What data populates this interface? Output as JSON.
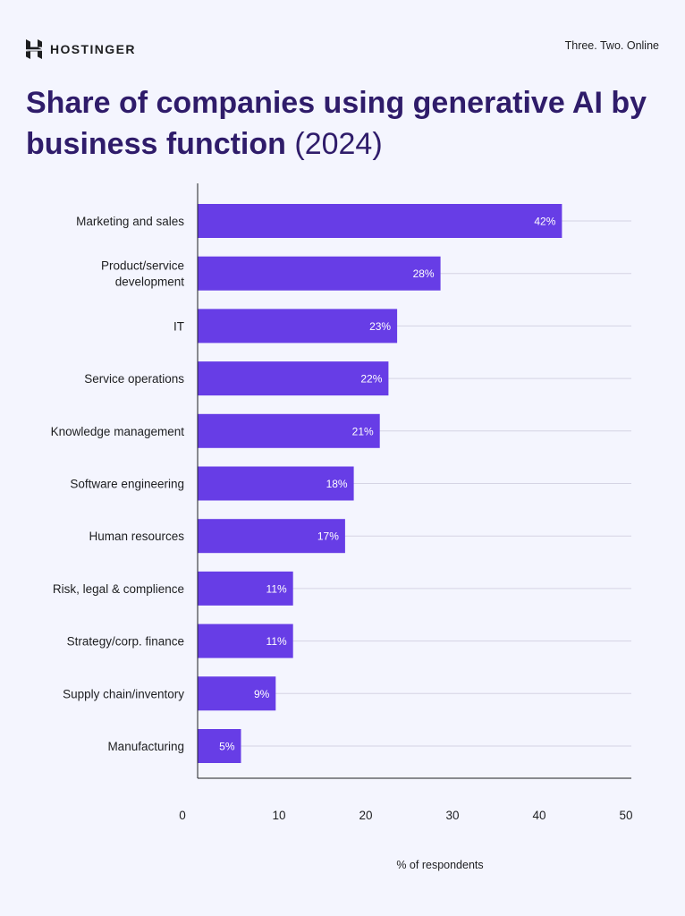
{
  "header": {
    "brand": "HOSTINGER",
    "tagline": "Three. Two. Online",
    "title_main": "Share of companies using generative AI by business function",
    "title_year": "(2024)"
  },
  "colors": {
    "bar": "#673de6",
    "title": "#2f1c6a",
    "background": "#f4f5fe",
    "gridline": "#d5d4e4",
    "axis": "#1d1e20"
  },
  "chart_data": {
    "type": "bar",
    "orientation": "horizontal",
    "categories": [
      "Marketing and sales",
      "Product/service development",
      "IT",
      "Service operations",
      "Knowledge management",
      "Software engineering",
      "Human resources",
      "Risk, legal & complience",
      "Strategy/corp. finance",
      "Supply chain/inventory",
      "Manufacturing"
    ],
    "category_lines": [
      [
        "Marketing and sales"
      ],
      [
        "Product/service",
        "development"
      ],
      [
        "IT"
      ],
      [
        "Service operations"
      ],
      [
        "Knowledge management"
      ],
      [
        "Software engineering"
      ],
      [
        "Human resources"
      ],
      [
        "Risk, legal & complience"
      ],
      [
        "Strategy/corp. finance"
      ],
      [
        "Supply chain/inventory"
      ],
      [
        "Manufacturing"
      ]
    ],
    "values": [
      42,
      28,
      23,
      22,
      21,
      18,
      17,
      11,
      11,
      9,
      5
    ],
    "value_labels": [
      "42%",
      "28%",
      "23%",
      "22%",
      "21%",
      "18%",
      "17%",
      "11%",
      "11%",
      "9%",
      "5%"
    ],
    "xlabel": "% of respondents",
    "ylabel": "",
    "xlim": [
      0,
      50
    ],
    "xticks": [
      0,
      10,
      20,
      30,
      40,
      50
    ],
    "grid": true
  }
}
